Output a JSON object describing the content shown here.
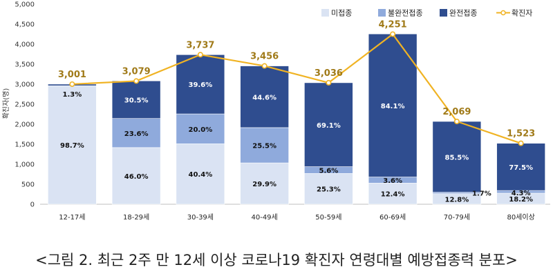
{
  "chart_data": {
    "type": "bar",
    "stacked": true,
    "caption": "<그림 2. 최근 2주 만 12세 이상 코로나19 확진자 연령대별 예방접종력 분포>",
    "ylabel": "확진자(명)",
    "ylim": [
      0,
      5000
    ],
    "yticks": [
      "0",
      "500",
      "1,000",
      "1,500",
      "2,000",
      "2,500",
      "3,000",
      "3,500",
      "4,000",
      "4,500",
      "5,000"
    ],
    "categories": [
      "12-17세",
      "18-29세",
      "30-39세",
      "40-49세",
      "50-59세",
      "60-69세",
      "70-79세",
      "80세이상"
    ],
    "totals": [
      3001,
      3079,
      3737,
      3456,
      3036,
      4251,
      2069,
      1523
    ],
    "total_labels": [
      "3,001",
      "3,079",
      "3,737",
      "3,456",
      "3,036",
      "4,251",
      "2,069",
      "1,523"
    ],
    "series": [
      {
        "name": "미접종",
        "color": "#dae3f3",
        "shares": [
          98.7,
          46.0,
          40.4,
          29.9,
          25.3,
          12.4,
          12.8,
          18.2
        ],
        "labels": [
          "98.7%",
          "46.0%",
          "40.4%",
          "29.9%",
          "25.3%",
          "12.4%",
          "12.8%",
          "18.2%"
        ]
      },
      {
        "name": "불완전접종",
        "color": "#8faadc",
        "shares": [
          0.0,
          23.6,
          20.0,
          25.5,
          5.6,
          3.6,
          1.7,
          4.3
        ],
        "labels": [
          "",
          "23.6%",
          "20.0%",
          "25.5%",
          "5.6%",
          "3.6%",
          "1.7%",
          "4.3%"
        ]
      },
      {
        "name": "완전접종",
        "color": "#2f4d8f",
        "shares": [
          1.3,
          30.5,
          39.6,
          44.6,
          69.1,
          84.1,
          85.5,
          77.5
        ],
        "labels": [
          "1.3%",
          "30.5%",
          "39.6%",
          "44.6%",
          "69.1%",
          "84.1%",
          "85.5%",
          "77.5%"
        ]
      }
    ],
    "line": {
      "name": "확진자",
      "color": "#f0b323"
    },
    "legend_position": "top-right",
    "grid": false
  }
}
